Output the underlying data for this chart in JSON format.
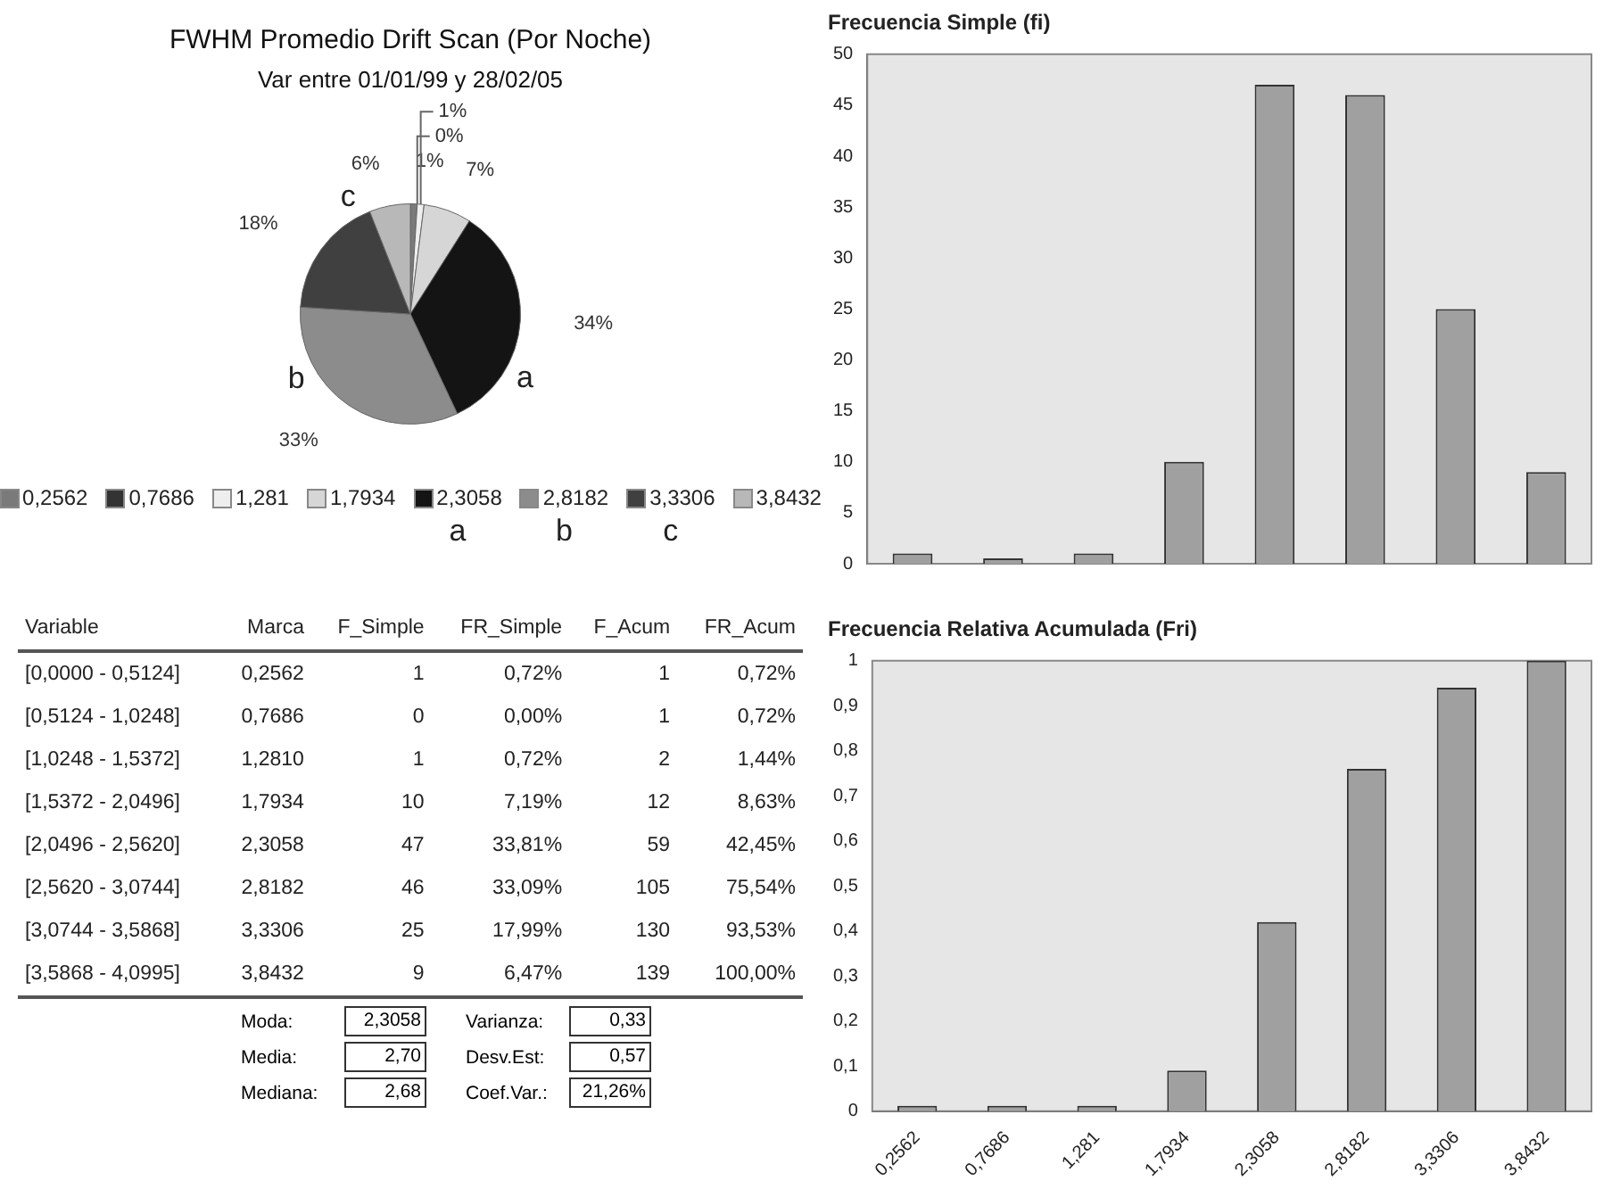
{
  "chart_data": [
    {
      "type": "pie",
      "title": "FWHM Promedio Drift Scan (Por Noche)",
      "subtitle": "Var entre 01/01/99 y 28/02/05",
      "categories": [
        "0,2562",
        "0,7686",
        "1,281",
        "1,7934",
        "2,3058",
        "2,8182",
        "3,3306",
        "3,8432"
      ],
      "values": [
        1,
        0,
        1,
        7,
        34,
        33,
        18,
        6
      ],
      "colors": [
        "#7a7a7a",
        "#333333",
        "#eeeeee",
        "#d6d6d6",
        "#141414",
        "#8c8c8c",
        "#404040",
        "#b8b8b8"
      ],
      "value_labels": [
        "1%",
        "0%",
        "1%",
        "7%",
        "34%",
        "33%",
        "18%",
        "6%"
      ],
      "legend": "bottom",
      "annotations": [
        {
          "text": "a",
          "x": "2,3058"
        },
        {
          "text": "b",
          "x": "2,8182"
        },
        {
          "text": "c",
          "x": "3,3306"
        }
      ]
    },
    {
      "type": "bar",
      "title": "Frecuencia Simple (fi)",
      "categories": [
        "0,2562",
        "0,7686",
        "1,281",
        "1,7934",
        "2,3058",
        "2,8182",
        "3,3306",
        "3,8432"
      ],
      "tick_labels": "y",
      "values": [
        1,
        0,
        1,
        10,
        47,
        46,
        25,
        9
      ],
      "color": "#a0a0a0",
      "ylim": [
        0,
        50
      ],
      "yticks": [
        0,
        5,
        10,
        15,
        20,
        25,
        30,
        35,
        40,
        45,
        50
      ]
    },
    {
      "type": "other",
      "categories": [
        "Variable",
        "Marca",
        "F_Simple",
        "FR_Simple",
        "F_Acum",
        "FR_Acum"
      ],
      "cell_labels": [
        [
          "[0,0000 - 0,5124]",
          "0,2562",
          "1",
          "0,72%",
          "1",
          "0,72%"
        ],
        [
          "[0,5124 - 1,0248]",
          "0,7686",
          "0",
          "0,00%",
          "1",
          "0,72%"
        ],
        [
          "[1,0248 - 1,5372]",
          "1,2810",
          "1",
          "0,72%",
          "2",
          "1,44%"
        ],
        [
          "[1,5372 - 2,0496]",
          "1,7934",
          "10",
          "7,19%",
          "12",
          "8,63%"
        ],
        [
          "[2,0496 - 2,5620]",
          "2,3058",
          "47",
          "33,81%",
          "59",
          "42,45%"
        ],
        [
          "[2,5620 - 3,0744]",
          "2,8182",
          "46",
          "33,09%",
          "105",
          "75,54%"
        ],
        [
          "[3,0744 - 3,5868]",
          "3,3306",
          "25",
          "17,99%",
          "130",
          "93,53%"
        ],
        [
          "[3,5868 - 4,0995]",
          "3,8432",
          "9",
          "6,47%",
          "139",
          "100,00%"
        ]
      ],
      "annotations": [
        "Moda:",
        "2,3058",
        "Media:",
        "2,70",
        "Mediana:",
        "2,68",
        "Varianza:",
        "0,33",
        "Desv.Est:",
        "0,57",
        "Coef.Var.:",
        "21,26%"
      ]
    },
    {
      "type": "bar",
      "title": "Frecuencia Relativa Acumulada (Fri)",
      "categories": [
        "0,2562",
        "0,7686",
        "1,281",
        "1,7934",
        "2,3058",
        "2,8182",
        "3,3306",
        "3,8432"
      ],
      "values": [
        0.01,
        0.01,
        0.01,
        0.09,
        0.42,
        0.76,
        0.94,
        1
      ],
      "color": "#a0a0a0",
      "ylim": [
        0,
        1
      ],
      "yticks": [
        0,
        {
          "value": 0.1,
          "label": "0,1"
        },
        {
          "value": 0.2,
          "label": "0,2"
        },
        {
          "value": 0.3,
          "label": "0,3"
        },
        {
          "value": 0.4,
          "label": "0,4"
        },
        {
          "value": 0.5,
          "label": "0,5"
        },
        {
          "value": 0.6,
          "label": "0,6"
        },
        {
          "value": 0.7,
          "label": "0,7"
        },
        {
          "value": 0.8,
          "label": "0,8"
        },
        {
          "value": 0.9,
          "label": "0,9"
        },
        1
      ]
    }
  ]
}
